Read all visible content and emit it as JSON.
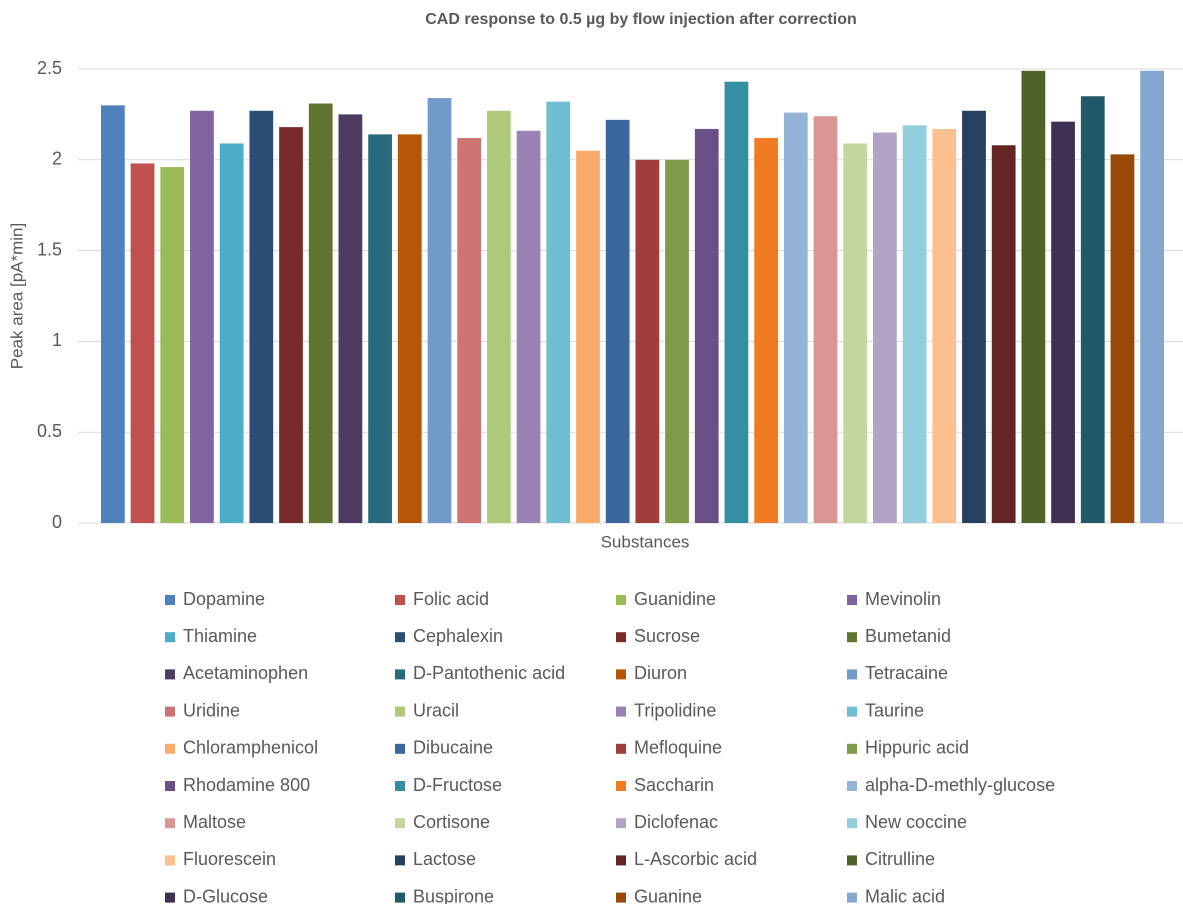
{
  "chart_data": {
    "type": "bar",
    "title": "CAD response to 0.5 µg by flow injection after correction",
    "xlabel": "Substances",
    "ylabel": "Peak area [pA*min]",
    "categories": [
      null
    ],
    "ylim": [
      0,
      2.5
    ],
    "yticks": [
      0,
      0.5,
      1,
      1.5,
      2,
      2.5
    ],
    "grid": true,
    "legend": "bottom",
    "series": [
      {
        "name": "Dopamine",
        "color": "#4f81bd",
        "values": [
          2.3
        ]
      },
      {
        "name": "Folic acid",
        "color": "#c0504d",
        "values": [
          1.98
        ]
      },
      {
        "name": "Guanidine",
        "color": "#9bbb59",
        "values": [
          1.96
        ]
      },
      {
        "name": "Mevinolin",
        "color": "#8064a2",
        "values": [
          2.27
        ]
      },
      {
        "name": "Thiamine",
        "color": "#4bacc6",
        "values": [
          2.09
        ]
      },
      {
        "name": "Cephalexin",
        "color": "#2c4d75",
        "values": [
          2.27
        ]
      },
      {
        "name": "Sucrose",
        "color": "#772c2a",
        "values": [
          2.18
        ]
      },
      {
        "name": "Bumetanid",
        "color": "#5f7530",
        "values": [
          2.31
        ]
      },
      {
        "name": "Acetaminophen",
        "color": "#4d3b62",
        "values": [
          2.25
        ]
      },
      {
        "name": "D-Pantothenic acid",
        "color": "#276a7c",
        "values": [
          2.14
        ]
      },
      {
        "name": "Diuron",
        "color": "#b65708",
        "values": [
          2.14
        ]
      },
      {
        "name": "Tetracaine",
        "color": "#729aca",
        "values": [
          2.34
        ]
      },
      {
        "name": "Uridine",
        "color": "#cd7371",
        "values": [
          2.12
        ]
      },
      {
        "name": "Uracil",
        "color": "#afc97a",
        "values": [
          2.27
        ]
      },
      {
        "name": "Tripolidine",
        "color": "#9983b5",
        "values": [
          2.16
        ]
      },
      {
        "name": "Taurine",
        "color": "#6fbdd1",
        "values": [
          2.32
        ]
      },
      {
        "name": "Chloramphenicol",
        "color": "#f9ab6b",
        "values": [
          2.05
        ]
      },
      {
        "name": "Dibucaine",
        "color": "#3a679c",
        "values": [
          2.22
        ]
      },
      {
        "name": "Mefloquine",
        "color": "#9f3e3a",
        "values": [
          2.0
        ]
      },
      {
        "name": "Hippuric acid",
        "color": "#7f9a48",
        "values": [
          2.0
        ]
      },
      {
        "name": "Rhodamine 800",
        "color": "#6a5084",
        "values": [
          2.17
        ]
      },
      {
        "name": "D-Fructose",
        "color": "#358ea4",
        "values": [
          2.43
        ]
      },
      {
        "name": "Saccharin",
        "color": "#f07b22",
        "values": [
          2.12
        ]
      },
      {
        "name": "alpha-D-methly-glucose",
        "color": "#95b3d7",
        "values": [
          2.26
        ]
      },
      {
        "name": "Maltose",
        "color": "#d99694",
        "values": [
          2.24
        ]
      },
      {
        "name": "Cortisone",
        "color": "#c3d69b",
        "values": [
          2.09
        ]
      },
      {
        "name": "Diclofenac",
        "color": "#b2a2c7",
        "values": [
          2.15
        ]
      },
      {
        "name": "New coccine",
        "color": "#92cddc",
        "values": [
          2.19
        ]
      },
      {
        "name": "Fluorescein",
        "color": "#fac08f",
        "values": [
          2.17
        ]
      },
      {
        "name": "Lactose",
        "color": "#254061",
        "values": [
          2.27
        ]
      },
      {
        "name": "L-Ascorbic acid",
        "color": "#632523",
        "values": [
          2.08
        ]
      },
      {
        "name": "Citrulline",
        "color": "#4f6228",
        "values": [
          2.49
        ]
      },
      {
        "name": "D-Glucose",
        "color": "#403152",
        "values": [
          2.21
        ]
      },
      {
        "name": "Buspirone",
        "color": "#215968",
        "values": [
          2.35
        ]
      },
      {
        "name": "Guanine",
        "color": "#984807",
        "values": [
          2.03
        ]
      },
      {
        "name": "Malic acid",
        "color": "#84a7d1",
        "values": [
          2.49
        ]
      }
    ]
  }
}
